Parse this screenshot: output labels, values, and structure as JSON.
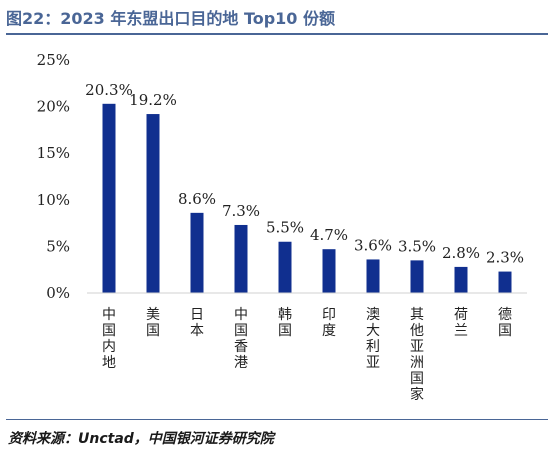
{
  "header": {
    "title": "图22：2023 年东盟出口目的地 Top10 份额"
  },
  "footer": {
    "source": "资料来源：Unctad，中国银河证券研究院"
  },
  "chart_data": {
    "type": "bar",
    "title": "",
    "xlabel": "",
    "ylabel": "",
    "categories": [
      "中国内地",
      "美国",
      "日本",
      "中国香港",
      "韩国",
      "印度",
      "澳大利亚",
      "其他亚洲国家",
      "荷兰",
      "德国"
    ],
    "values": [
      20.3,
      19.2,
      8.6,
      7.3,
      5.5,
      4.7,
      3.6,
      3.5,
      2.8,
      2.3
    ],
    "data_labels": [
      "20.3%",
      "19.2%",
      "8.6%",
      "7.3%",
      "5.5%",
      "4.7%",
      "3.6%",
      "3.5%",
      "2.8%",
      "2.3%"
    ],
    "ylim": [
      0,
      25
    ],
    "yticks": [
      0,
      5,
      10,
      15,
      20,
      25
    ],
    "ytick_labels": [
      "0%",
      "5%",
      "10%",
      "15%",
      "20%",
      "25%"
    ],
    "grid": false,
    "legend": "none",
    "bar_color": "#102f8f",
    "axis_color": "#d0d0d0"
  }
}
